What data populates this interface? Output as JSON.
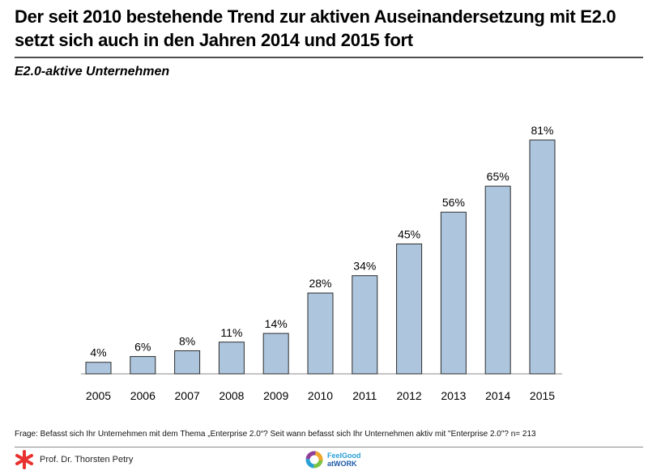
{
  "header": {
    "title_line1": "Der seit 2010 bestehende Trend zur aktiven Auseinandersetzung mit E2.0",
    "title_line2": "setzt sich auch in den Jahren 2014 und 2015 fort"
  },
  "chart_data": {
    "type": "bar",
    "title": "E2.0-aktive Unternehmen",
    "categories": [
      "2005",
      "2006",
      "2007",
      "2008",
      "2009",
      "2010",
      "2011",
      "2012",
      "2013",
      "2014",
      "2015"
    ],
    "values": [
      4,
      6,
      8,
      11,
      14,
      28,
      34,
      45,
      56,
      65,
      81
    ],
    "data_labels": [
      "4%",
      "6%",
      "8%",
      "11%",
      "14%",
      "28%",
      "34%",
      "45%",
      "56%",
      "65%",
      "81%"
    ],
    "unit": "%",
    "xlabel": "",
    "ylabel": "",
    "ylim": [
      0,
      100
    ],
    "grid": false,
    "legend": "none",
    "colors": {
      "bar_fill": "#adc6de",
      "bar_stroke": "#2b2b2b",
      "baseline": "#8a8a8a"
    }
  },
  "footer": {
    "question": "Frage: Befasst sich Ihr Unternehmen mit dem Thema „Enterprise 2.0“? Seit wann befasst sich Ihr Unternehmen aktiv mit \"Enterprise 2.0\"? n= 213",
    "author": "Prof. Dr. Thorsten Petry",
    "logo_line1": "FeelGood",
    "logo_line2": "atWORK",
    "author_icon": "red-asterisk-icon",
    "logo_icon": "colored-ring-icon"
  }
}
